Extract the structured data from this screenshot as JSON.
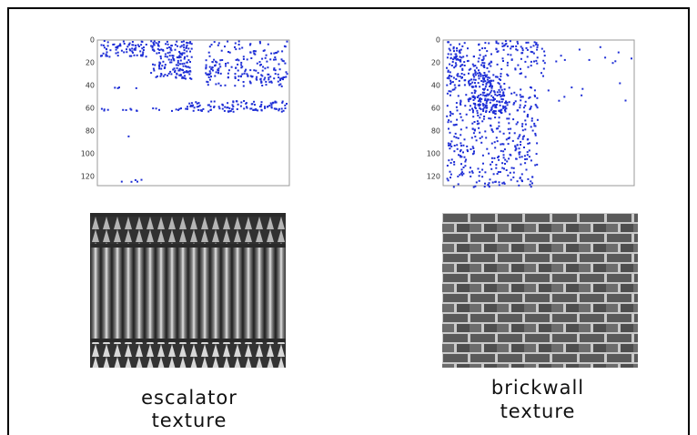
{
  "panels": [
    {
      "yticks": [
        0,
        20,
        40,
        60,
        80,
        100,
        120
      ],
      "caption": [
        "escalator",
        "texture"
      ]
    },
    {
      "yticks": [
        0,
        20,
        40,
        60,
        80,
        100,
        120
      ],
      "caption": [
        "brickwall",
        "texture"
      ]
    }
  ]
}
